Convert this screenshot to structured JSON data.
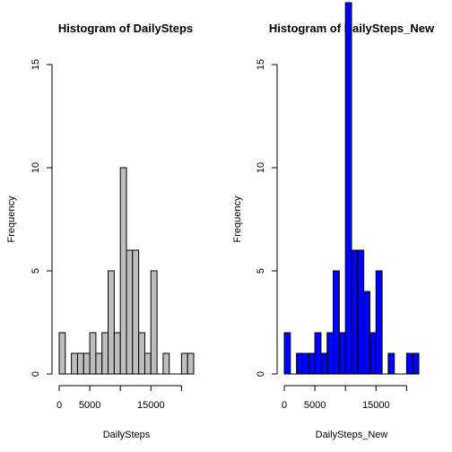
{
  "chart_data": [
    {
      "type": "bar",
      "title": "Histogram of DailySteps",
      "xlabel": "DailySteps",
      "ylabel": "Frequency",
      "bar_color": "#bebebe",
      "border_color": "#000000",
      "bin_width": 1000,
      "bin_start": 0,
      "values": [
        2,
        0,
        1,
        1,
        1,
        2,
        1,
        2,
        5,
        2,
        10,
        6,
        6,
        2,
        1,
        5,
        0,
        1,
        0,
        0,
        1,
        1
      ],
      "xlim": [
        0,
        22000
      ],
      "ylim": [
        0,
        15
      ],
      "xticks": [
        0,
        5000,
        15000
      ],
      "xtick_labels": [
        "0",
        "5000",
        "15000"
      ],
      "yticks": [
        0,
        5,
        10,
        15
      ],
      "ytick_labels": [
        "0",
        "5",
        "10",
        "15"
      ],
      "grid": false
    },
    {
      "type": "bar",
      "title": "Histogram of DailySteps_New",
      "xlabel": "DailySteps_New",
      "ylabel": "Frequency",
      "bar_color": "#0000ff",
      "border_color": "#000000",
      "bin_width": 1000,
      "bin_start": 0,
      "values": [
        2,
        0,
        1,
        1,
        1,
        2,
        1,
        2,
        5,
        2,
        18,
        6,
        6,
        4,
        2,
        5,
        0,
        1,
        0,
        0,
        1,
        1
      ],
      "xlim": [
        0,
        22000
      ],
      "ylim": [
        0,
        15
      ],
      "xticks": [
        0,
        5000,
        15000
      ],
      "xtick_labels": [
        "0",
        "5000",
        "15000"
      ],
      "yticks": [
        0,
        5,
        10,
        15
      ],
      "ytick_labels": [
        "0",
        "5",
        "10",
        "15"
      ],
      "grid": false
    }
  ]
}
